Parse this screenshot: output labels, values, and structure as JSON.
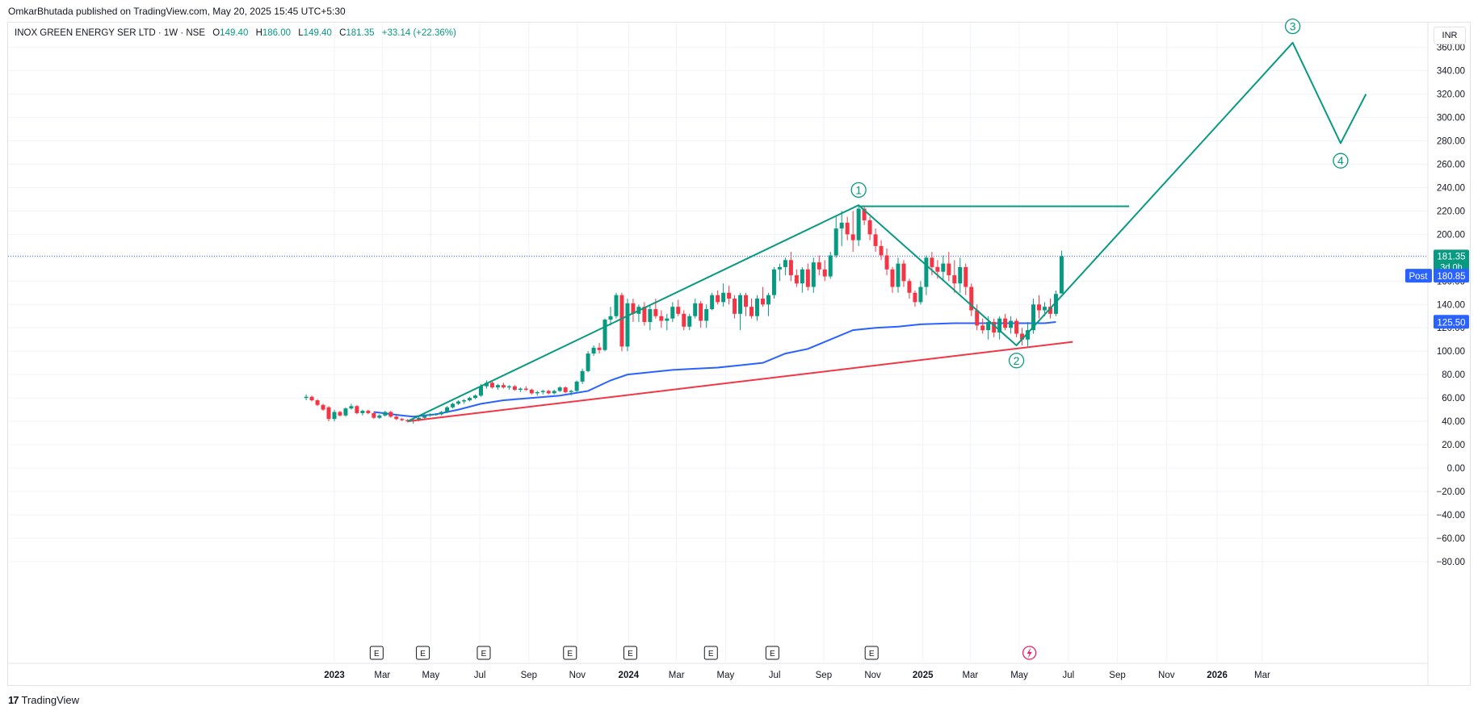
{
  "header": {
    "publisher_line": "OmkarBhutada published on TradingView.com, May 20, 2025 15:45 UTC+5:30"
  },
  "legend": {
    "symbol": "INOX GREEN ENERGY SER LTD · 1W · NSE",
    "open_label": "O",
    "open": "149.40",
    "high_label": "H",
    "high": "186.00",
    "low_label": "L",
    "low": "149.40",
    "close_label": "C",
    "close": "181.35",
    "change": "+33.14 (+22.36%)"
  },
  "currency": "INR",
  "footer": {
    "brand": "TradingView",
    "logo_mark": "17"
  },
  "colors": {
    "up": "#089981",
    "down": "#f23645",
    "ma": "#2962ff",
    "trendline": "#f23645",
    "wave": "#089981",
    "price_line": "#2962ff",
    "post_badge": "#2962ff"
  },
  "chart_data": {
    "type": "candlestick",
    "title": "INOX GREEN ENERGY SER LTD · 1W · NSE",
    "ylim": [
      -90,
      375
    ],
    "yticks": [
      360,
      340,
      320,
      300,
      280,
      260,
      240,
      220,
      200,
      180,
      160,
      140,
      120,
      100,
      80,
      60,
      40,
      20,
      0,
      -20,
      -40,
      -60,
      -80
    ],
    "ytick_labels": [
      "360.00",
      "340.00",
      "320.00",
      "300.00",
      "280.00",
      "260.00",
      "240.00",
      "220.00",
      "200.00",
      "180.00",
      "160.00",
      "140.00",
      "120.00",
      "100.00",
      "80.00",
      "60.00",
      "40.00",
      "20.00",
      "0.00",
      "−20.00",
      "−40.00",
      "−60.00",
      "−80.00"
    ],
    "xticks": [
      {
        "label": "2023",
        "t": 0.0,
        "bold": true
      },
      {
        "label": "Mar",
        "t": 8.5
      },
      {
        "label": "May",
        "t": 17.1
      },
      {
        "label": "Jul",
        "t": 25.8
      },
      {
        "label": "Sep",
        "t": 34.5
      },
      {
        "label": "Nov",
        "t": 43.1
      },
      {
        "label": "2024",
        "t": 52.2,
        "bold": true
      },
      {
        "label": "Mar",
        "t": 60.7
      },
      {
        "label": "May",
        "t": 69.4
      },
      {
        "label": "Jul",
        "t": 78.1
      },
      {
        "label": "Sep",
        "t": 86.8
      },
      {
        "label": "Nov",
        "t": 95.5
      },
      {
        "label": "2025",
        "t": 104.4,
        "bold": true
      },
      {
        "label": "Mar",
        "t": 112.8
      },
      {
        "label": "May",
        "t": 121.5
      },
      {
        "label": "Jul",
        "t": 130.2
      },
      {
        "label": "Sep",
        "t": 138.9
      },
      {
        "label": "Nov",
        "t": 147.6
      },
      {
        "label": "2026",
        "t": 156.6,
        "bold": true
      },
      {
        "label": "Mar",
        "t": 164.6
      }
    ],
    "candles": [
      [
        -5,
        60,
        63,
        58,
        61
      ],
      [
        -4,
        61,
        62,
        57,
        58
      ],
      [
        -3,
        58,
        59,
        53,
        54
      ],
      [
        -2,
        54,
        55,
        49,
        50
      ],
      [
        -1,
        52,
        53,
        40,
        42
      ],
      [
        0,
        42,
        50,
        40,
        48
      ],
      [
        1,
        48,
        49,
        44,
        45
      ],
      [
        2,
        45,
        52,
        44,
        51
      ],
      [
        3,
        51,
        55,
        50,
        53
      ],
      [
        4,
        53,
        54,
        46,
        47
      ],
      [
        5,
        47,
        50,
        45,
        49
      ],
      [
        6,
        49,
        50,
        46,
        47
      ],
      [
        7,
        47,
        48,
        42,
        43
      ],
      [
        8,
        43,
        46,
        42,
        45
      ],
      [
        9,
        45,
        49,
        44,
        48
      ],
      [
        10,
        48,
        49,
        43,
        44
      ],
      [
        11,
        44,
        45,
        41,
        42
      ],
      [
        12,
        42,
        43,
        40,
        41
      ],
      [
        13,
        41,
        42,
        39,
        40
      ],
      [
        14,
        40,
        42,
        38,
        41
      ],
      [
        15,
        41,
        44,
        40,
        43
      ],
      [
        16,
        43,
        46,
        42,
        45
      ],
      [
        17,
        45,
        47,
        44,
        46
      ],
      [
        18,
        46,
        47,
        45,
        46
      ],
      [
        19,
        46,
        49,
        45,
        48
      ],
      [
        20,
        48,
        53,
        47,
        52
      ],
      [
        21,
        52,
        56,
        51,
        55
      ],
      [
        22,
        55,
        58,
        54,
        57
      ],
      [
        23,
        57,
        59,
        55,
        58
      ],
      [
        24,
        58,
        61,
        57,
        60
      ],
      [
        25,
        60,
        63,
        59,
        62
      ],
      [
        26,
        62,
        72,
        61,
        70
      ],
      [
        27,
        70,
        75,
        68,
        73
      ],
      [
        28,
        73,
        74,
        68,
        69
      ],
      [
        29,
        69,
        72,
        67,
        71
      ],
      [
        30,
        71,
        73,
        68,
        69
      ],
      [
        31,
        69,
        71,
        67,
        70
      ],
      [
        32,
        70,
        71,
        66,
        67
      ],
      [
        33,
        67,
        69,
        65,
        68
      ],
      [
        34,
        68,
        70,
        66,
        67
      ],
      [
        35,
        67,
        68,
        63,
        64
      ],
      [
        36,
        64,
        66,
        62,
        65
      ],
      [
        37,
        65,
        67,
        63,
        66
      ],
      [
        38,
        66,
        67,
        63,
        64
      ],
      [
        39,
        64,
        67,
        63,
        66
      ],
      [
        40,
        66,
        70,
        65,
        69
      ],
      [
        41,
        69,
        70,
        64,
        65
      ],
      [
        42,
        65,
        67,
        62,
        66
      ],
      [
        43,
        66,
        75,
        65,
        74
      ],
      [
        44,
        74,
        85,
        72,
        83
      ],
      [
        45,
        83,
        100,
        82,
        98
      ],
      [
        46,
        98,
        105,
        96,
        103
      ],
      [
        47,
        103,
        107,
        98,
        101
      ],
      [
        48,
        101,
        128,
        100,
        127
      ],
      [
        49,
        127,
        138,
        122,
        130
      ],
      [
        50,
        130,
        150,
        128,
        148
      ],
      [
        51,
        148,
        150,
        100,
        104
      ],
      [
        52,
        104,
        145,
        100,
        141
      ],
      [
        53,
        141,
        145,
        125,
        132
      ],
      [
        54,
        132,
        140,
        125,
        138
      ],
      [
        55,
        138,
        142,
        122,
        125
      ],
      [
        56,
        125,
        140,
        118,
        136
      ],
      [
        57,
        136,
        145,
        128,
        130
      ],
      [
        58,
        130,
        135,
        120,
        126
      ],
      [
        59,
        126,
        132,
        118,
        128
      ],
      [
        60,
        128,
        142,
        125,
        138
      ],
      [
        61,
        138,
        144,
        130,
        132
      ],
      [
        62,
        132,
        135,
        118,
        121
      ],
      [
        63,
        121,
        132,
        118,
        130
      ],
      [
        64,
        130,
        145,
        128,
        141
      ],
      [
        65,
        141,
        143,
        120,
        126
      ],
      [
        66,
        126,
        140,
        120,
        136
      ],
      [
        67,
        136,
        150,
        135,
        148
      ],
      [
        68,
        148,
        152,
        140,
        142
      ],
      [
        69,
        142,
        158,
        138,
        150
      ],
      [
        70,
        150,
        156,
        140,
        145
      ],
      [
        71,
        145,
        148,
        128,
        132
      ],
      [
        72,
        132,
        150,
        118,
        148
      ],
      [
        73,
        148,
        150,
        130,
        138
      ],
      [
        74,
        138,
        145,
        128,
        130
      ],
      [
        75,
        130,
        148,
        126,
        145
      ],
      [
        76,
        145,
        155,
        138,
        140
      ],
      [
        77,
        140,
        150,
        130,
        148
      ],
      [
        78,
        148,
        172,
        145,
        170
      ],
      [
        79,
        170,
        175,
        160,
        172
      ],
      [
        80,
        172,
        180,
        165,
        178
      ],
      [
        81,
        178,
        185,
        160,
        165
      ],
      [
        82,
        165,
        170,
        155,
        158
      ],
      [
        83,
        158,
        172,
        150,
        170
      ],
      [
        84,
        170,
        175,
        152,
        155
      ],
      [
        85,
        155,
        180,
        150,
        176
      ],
      [
        86,
        176,
        182,
        165,
        170
      ],
      [
        87,
        170,
        178,
        160,
        164
      ],
      [
        88,
        164,
        185,
        162,
        182
      ],
      [
        89,
        182,
        215,
        180,
        205
      ],
      [
        90,
        205,
        220,
        190,
        210
      ],
      [
        91,
        210,
        215,
        195,
        200
      ],
      [
        92,
        200,
        220,
        185,
        195
      ],
      [
        93,
        195,
        225,
        190,
        222
      ],
      [
        94,
        222,
        224,
        208,
        212
      ],
      [
        95,
        212,
        215,
        195,
        200
      ],
      [
        96,
        200,
        205,
        185,
        190
      ],
      [
        97,
        190,
        195,
        178,
        182
      ],
      [
        98,
        182,
        188,
        165,
        170
      ],
      [
        99,
        170,
        172,
        150,
        155
      ],
      [
        100,
        155,
        180,
        150,
        175
      ],
      [
        101,
        175,
        178,
        155,
        160
      ],
      [
        102,
        160,
        162,
        145,
        150
      ],
      [
        103,
        150,
        152,
        138,
        142
      ],
      [
        104,
        142,
        160,
        140,
        155
      ],
      [
        105,
        155,
        182,
        148,
        180
      ],
      [
        106,
        180,
        185,
        165,
        172
      ],
      [
        107,
        172,
        178,
        162,
        168
      ],
      [
        108,
        168,
        182,
        160,
        175
      ],
      [
        109,
        175,
        185,
        160,
        165
      ],
      [
        110,
        165,
        178,
        150,
        158
      ],
      [
        111,
        158,
        180,
        150,
        172
      ],
      [
        112,
        172,
        175,
        148,
        155
      ],
      [
        113,
        155,
        158,
        130,
        135
      ],
      [
        114,
        135,
        140,
        118,
        122
      ],
      [
        115,
        122,
        128,
        115,
        118
      ],
      [
        116,
        118,
        130,
        110,
        125
      ],
      [
        117,
        125,
        128,
        112,
        116
      ],
      [
        118,
        116,
        130,
        110,
        128
      ],
      [
        119,
        128,
        132,
        118,
        120
      ],
      [
        120,
        120,
        130,
        115,
        126
      ],
      [
        121,
        126,
        128,
        112,
        115
      ],
      [
        122,
        115,
        120,
        105,
        110
      ],
      [
        123,
        110,
        125,
        104,
        118
      ],
      [
        124,
        118,
        145,
        115,
        140
      ],
      [
        125,
        140,
        148,
        128,
        135
      ],
      [
        126,
        135,
        142,
        130,
        138
      ],
      [
        127,
        138,
        145,
        128,
        132
      ],
      [
        128,
        132,
        152,
        130,
        149
      ],
      [
        129,
        149.4,
        186,
        149.4,
        181.35
      ]
    ],
    "moving_average": [
      [
        7,
        48
      ],
      [
        12,
        45
      ],
      [
        14,
        44
      ],
      [
        18,
        46
      ],
      [
        22,
        50
      ],
      [
        26,
        55
      ],
      [
        30,
        58
      ],
      [
        35,
        60
      ],
      [
        40,
        62
      ],
      [
        45,
        66
      ],
      [
        49,
        75
      ],
      [
        52,
        80
      ],
      [
        56,
        82
      ],
      [
        60,
        84
      ],
      [
        64,
        85
      ],
      [
        68,
        86
      ],
      [
        72,
        88
      ],
      [
        76,
        90
      ],
      [
        80,
        98
      ],
      [
        84,
        102
      ],
      [
        88,
        110
      ],
      [
        92,
        118
      ],
      [
        96,
        120
      ],
      [
        100,
        121
      ],
      [
        104,
        123
      ],
      [
        110,
        124
      ],
      [
        116,
        124
      ],
      [
        122,
        124
      ],
      [
        126,
        124
      ],
      [
        128,
        125
      ]
    ],
    "trendline": [
      [
        13,
        40
      ],
      [
        131,
        108
      ]
    ],
    "elliott_wave": {
      "points": [
        [
          13,
          40
        ],
        [
          93,
          225
        ],
        [
          121,
          105
        ],
        [
          170,
          364
        ],
        [
          178.5,
          278
        ],
        [
          183,
          320
        ]
      ],
      "labels": [
        {
          "text": "1",
          "t": 93,
          "y": 238
        },
        {
          "text": "2",
          "t": 121,
          "y": 92
        },
        {
          "text": "3",
          "t": 170,
          "y": 378
        },
        {
          "text": "4",
          "t": 178.5,
          "y": 263
        }
      ]
    },
    "resistance_line": {
      "y": 224,
      "t_start": 93,
      "t_end": 141
    },
    "earnings_markers": [
      7.5,
      15.7,
      26.5,
      41.8,
      52.5,
      66.8,
      77.7,
      95.3
    ],
    "earnings_label": "E",
    "price_line": {
      "value": 181.35,
      "label": "181.35",
      "sublabel": "3d 0h"
    },
    "post_badge": {
      "label": "Post",
      "value": "180.85",
      "y": 180.85
    },
    "ma_badge": {
      "value": "125.50",
      "y": 125.5
    }
  }
}
